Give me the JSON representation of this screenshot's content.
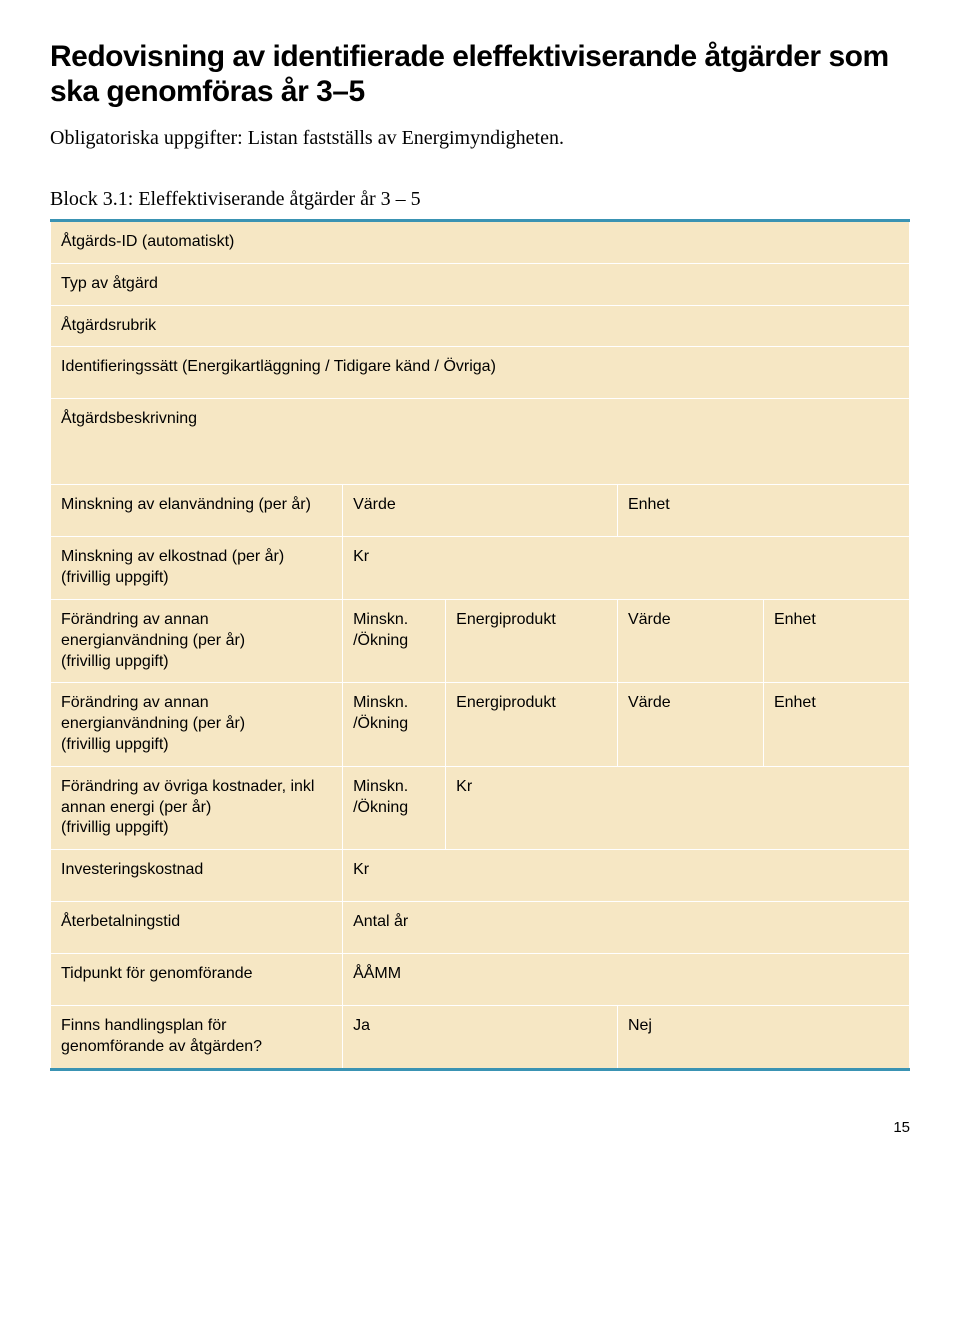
{
  "heading": "Redovisning av identifierade eleffektiviserande åtgärder som ska genomföras år 3–5",
  "subtitle": "Obligatoriska uppgifter: Listan fastställs av Energimyndigheten.",
  "block_label": "Block 3.1: Eleffektiviserande åtgärder år 3 – 5",
  "rows": {
    "r1": "Åtgärds-ID (automatiskt)",
    "r2": "Typ av åtgärd",
    "r3": "Åtgärdsrubrik",
    "r4": "Identifieringssätt (Energikartläggning / Tidigare känd / Övriga)",
    "r5": "Åtgärdsbeskrivning",
    "r6_label": "Minskning av elanvändning (per år)",
    "r6_c2": "Värde",
    "r6_c3": "Enhet",
    "r7_label": "Minskning av elkostnad (per år)\n(frivillig uppgift)",
    "r7_c2": "Kr",
    "r8_label": "Förändring av annan energianvändning (per år)\n(frivillig uppgift)",
    "r8_c2": "Minskn.\n/Ökning",
    "r8_c3": "Energiprodukt",
    "r8_c4": "Värde",
    "r8_c5": "Enhet",
    "r9_label": "Förändring av annan energianvändning (per år)\n(frivillig uppgift)",
    "r9_c2": "Minskn.\n/Ökning",
    "r9_c3": "Energiprodukt",
    "r9_c4": "Värde",
    "r9_c5": "Enhet",
    "r10_label": "Förändring av övriga kostnader, inkl annan energi (per år)\n(frivillig uppgift)",
    "r10_c2": "Minskn.\n/Ökning",
    "r10_c3": "Kr",
    "r11_label": "Investeringskostnad",
    "r11_c2": "Kr",
    "r12_label": "Återbetalningstid",
    "r12_c2": "Antal år",
    "r13_label": "Tidpunkt för genomförande",
    "r13_c2": "ÅÅMM",
    "r14_label": "Finns handlingsplan för genomförande av åtgärden?",
    "r14_c2": "Ja",
    "r14_c3": "Nej"
  },
  "page_number": "15",
  "colors": {
    "tan": "#f6e7c4",
    "rule": "#3a93b3",
    "text": "#000000",
    "bg": "#ffffff"
  }
}
